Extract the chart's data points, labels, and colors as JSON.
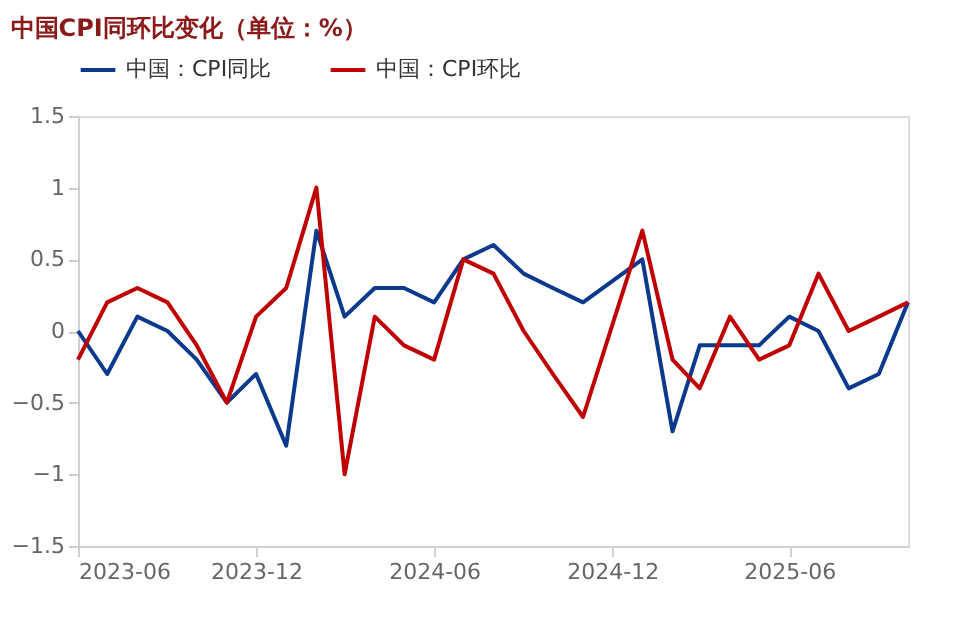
{
  "chart_data": {
    "type": "line",
    "title": "中国CPI同环比变化（单位：%）",
    "legend": "top",
    "grid": false,
    "marker": "none",
    "line_style": "solid",
    "xlim": [
      "2023-06",
      "2025-10"
    ],
    "xticks": [
      {
        "value": "2023-06",
        "label": "2023-06"
      },
      {
        "value": "2023-12",
        "label": "2023-12"
      },
      {
        "value": "2024-06",
        "label": "2024-06"
      },
      {
        "value": "2024-12",
        "label": "2024-12"
      },
      {
        "value": "2025-06",
        "label": "2025-06"
      }
    ],
    "ylim": [
      -1.5,
      1.5
    ],
    "yticks": [
      -1.5,
      -1,
      -0.5,
      0,
      0.5,
      1,
      1.5
    ],
    "series": [
      {
        "name": "中国：CPI同比",
        "color": "#0b3a8c",
        "x": [
          "2023-06",
          "2023-07",
          "2023-08",
          "2023-09",
          "2023-10",
          "2023-11",
          "2023-12",
          "2024-01",
          "2024-02",
          "2024-03",
          "2024-04",
          "2024-05",
          "2024-06",
          "2024-07",
          "2024-08",
          "2024-09",
          "2024-10",
          "2024-11",
          "2025-01",
          "2025-02",
          "2025-03",
          "2025-04",
          "2025-05",
          "2025-06",
          "2025-07",
          "2025-08",
          "2025-09",
          "2025-10"
        ],
        "values": [
          0,
          -0.3,
          0.1,
          0,
          -0.2,
          -0.5,
          -0.3,
          -0.8,
          0.7,
          0.1,
          0.3,
          0.3,
          0.2,
          0.5,
          0.6,
          0.4,
          0.3,
          0.2,
          0.5,
          -0.7,
          -0.1,
          -0.1,
          -0.1,
          0.1,
          0,
          -0.4,
          -0.3,
          0.2
        ]
      },
      {
        "name": "中国：CPI环比",
        "color": "#c00000",
        "x": [
          "2023-06",
          "2023-07",
          "2023-08",
          "2023-09",
          "2023-10",
          "2023-11",
          "2023-12",
          "2024-01",
          "2024-02",
          "2024-03",
          "2024-04",
          "2024-05",
          "2024-06",
          "2024-07",
          "2024-08",
          "2024-09",
          "2024-10",
          "2024-11",
          "2025-01",
          "2025-02",
          "2025-03",
          "2025-04",
          "2025-05",
          "2025-06",
          "2025-07",
          "2025-08",
          "2025-09",
          "2025-10"
        ],
        "values": [
          -0.2,
          0.2,
          0.3,
          0.2,
          -0.1,
          -0.5,
          0.1,
          0.3,
          1.0,
          -1.0,
          0.1,
          -0.1,
          -0.2,
          0.5,
          0.4,
          0,
          -0.3,
          -0.6,
          0.7,
          -0.2,
          -0.4,
          0.1,
          -0.2,
          -0.1,
          0.4,
          0,
          0.1,
          0.2
        ]
      }
    ]
  }
}
